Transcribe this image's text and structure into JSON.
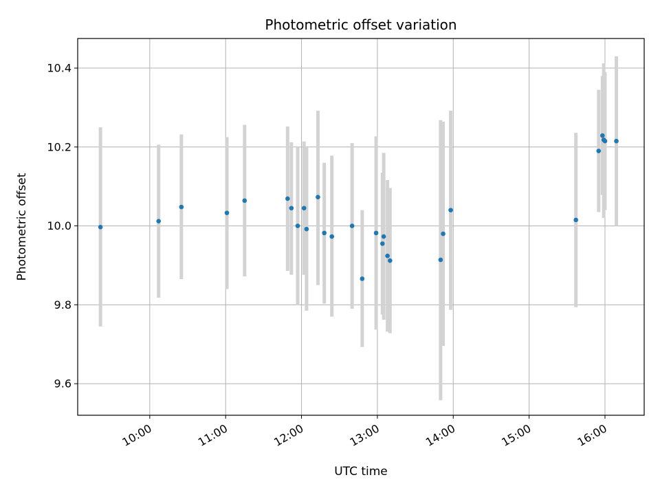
{
  "chart_data": {
    "type": "scatter",
    "title": "Photometric offset variation",
    "xlabel": "UTC time",
    "ylabel": "Photometric offset",
    "x_axis_kind": "time",
    "xlim": [
      "09:03",
      "16:31"
    ],
    "ylim": [
      9.52,
      10.475
    ],
    "x_ticks": [
      "10:00",
      "11:00",
      "12:00",
      "13:00",
      "14:00",
      "15:00",
      "16:00"
    ],
    "y_ticks": [
      9.6,
      9.8,
      10.0,
      10.2,
      10.4
    ],
    "grid": true,
    "marker_color": "#1f77b4",
    "errorbar_color": "#d3d3d3",
    "points": [
      {
        "time": "09:21",
        "value": 9.997,
        "low": 9.745,
        "high": 10.25
      },
      {
        "time": "10:07",
        "value": 10.012,
        "low": 9.818,
        "high": 10.206
      },
      {
        "time": "10:25",
        "value": 10.048,
        "low": 9.865,
        "high": 10.232
      },
      {
        "time": "11:01",
        "value": 10.033,
        "low": 9.84,
        "high": 10.225
      },
      {
        "time": "11:15",
        "value": 10.064,
        "low": 9.872,
        "high": 10.256
      },
      {
        "time": "11:49",
        "value": 10.069,
        "low": 9.886,
        "high": 10.252
      },
      {
        "time": "11:52",
        "value": 10.045,
        "low": 9.876,
        "high": 10.212
      },
      {
        "time": "11:57",
        "value": 10.0,
        "low": 9.799,
        "high": 10.2
      },
      {
        "time": "12:02",
        "value": 10.045,
        "low": 9.876,
        "high": 10.214
      },
      {
        "time": "12:04",
        "value": 9.992,
        "low": 9.785,
        "high": 10.2
      },
      {
        "time": "12:13",
        "value": 10.073,
        "low": 9.85,
        "high": 10.292
      },
      {
        "time": "12:18",
        "value": 9.982,
        "low": 9.803,
        "high": 10.16
      },
      {
        "time": "12:24",
        "value": 9.973,
        "low": 9.77,
        "high": 10.178
      },
      {
        "time": "12:40",
        "value": 10.0,
        "low": 9.79,
        "high": 10.21
      },
      {
        "time": "12:48",
        "value": 9.866,
        "low": 9.693,
        "high": 10.04
      },
      {
        "time": "12:59",
        "value": 9.982,
        "low": 9.737,
        "high": 10.227
      },
      {
        "time": "13:04",
        "value": 9.955,
        "low": 9.775,
        "high": 10.135
      },
      {
        "time": "13:05",
        "value": 9.973,
        "low": 9.762,
        "high": 10.185
      },
      {
        "time": "13:08",
        "value": 9.924,
        "low": 9.732,
        "high": 10.116
      },
      {
        "time": "13:10",
        "value": 9.912,
        "low": 9.728,
        "high": 10.096
      },
      {
        "time": "13:50",
        "value": 9.914,
        "low": 9.558,
        "high": 10.268
      },
      {
        "time": "13:52",
        "value": 9.98,
        "low": 9.696,
        "high": 10.264
      },
      {
        "time": "13:58",
        "value": 10.04,
        "low": 9.787,
        "high": 10.292
      },
      {
        "time": "15:37",
        "value": 10.015,
        "low": 9.794,
        "high": 10.236
      },
      {
        "time": "15:55",
        "value": 10.19,
        "low": 10.035,
        "high": 10.345
      },
      {
        "time": "15:58",
        "value": 10.229,
        "low": 10.078,
        "high": 10.38
      },
      {
        "time": "15:59",
        "value": 10.218,
        "low": 10.02,
        "high": 10.412
      },
      {
        "time": "16:00",
        "value": 10.215,
        "low": 10.04,
        "high": 10.39
      },
      {
        "time": "16:09",
        "value": 10.215,
        "low": 10.0,
        "high": 10.43
      }
    ]
  }
}
